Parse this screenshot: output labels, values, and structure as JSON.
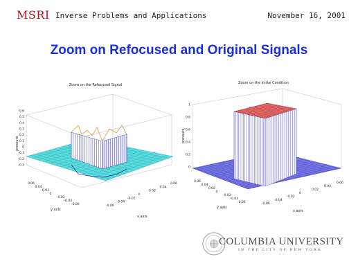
{
  "header": {
    "logo": "MSRI",
    "event": "Inverse Problems and Applications",
    "date": "November 16, 2001"
  },
  "slide_title": "Zoom on Refocused and Original Signals",
  "footer": {
    "university": "COLUMBIA UNIVERSITY",
    "subtitle": "IN THE CITY OF NEW YORK"
  },
  "chart_data": [
    {
      "type": "surface",
      "title": "Zoom on the Refocused Signal",
      "zlabel": "pressure",
      "xlabel": "x axis",
      "ylabel": "y axis",
      "z_ticks": [
        "0.6",
        "0.5",
        "0.4",
        "0.3",
        "0.2",
        "0.1",
        "0",
        "-0.1",
        "-0.2",
        "-0.3"
      ],
      "x_ticks": [
        "-0.06",
        "-0.04",
        "-0.02",
        "0",
        "0.02",
        "0.04",
        "0.06"
      ],
      "y_ticks": [
        "0.06",
        "0.04",
        "0.02",
        "0",
        "-0.02",
        "-0.04",
        "-0.06"
      ],
      "colors": {
        "base": "#3fd6d6",
        "side": "#3030a0",
        "top": "#d0a040"
      }
    },
    {
      "type": "surface",
      "title": "Zoom on the Initial Condition",
      "zlabel": "pressure",
      "xlabel": "x axis",
      "ylabel": "y axis",
      "z_ticks": [
        "1",
        "0.8",
        "0.6",
        "0.4",
        "0.2",
        "0"
      ],
      "x_ticks": [
        "-0.06",
        "-0.04",
        "-0.02",
        "0",
        "0.02",
        "0.04",
        "0.06"
      ],
      "y_ticks": [
        "0.06",
        "0.04",
        "0.02",
        "0",
        "-0.02",
        "-0.04",
        "-0.06"
      ],
      "colors": {
        "base": "#5a5ad0",
        "side": "#8080e0",
        "top": "#d05050"
      }
    }
  ]
}
